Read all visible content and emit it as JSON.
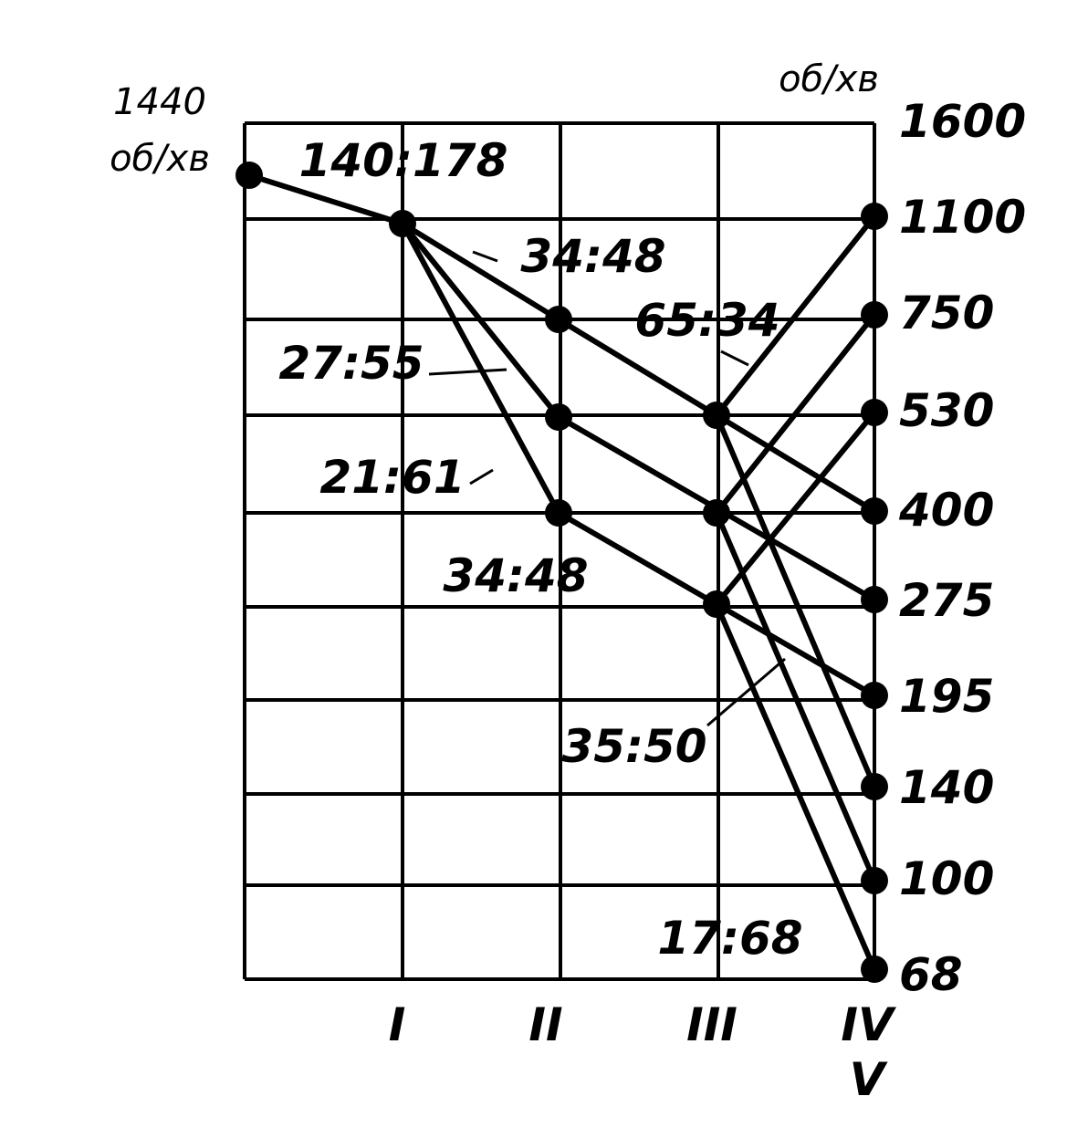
{
  "input_speed": {
    "value": "1440",
    "unit": "об/хв"
  },
  "output_unit": "об/хв",
  "speed_scale": [
    "1600",
    "1100",
    "750",
    "530",
    "400",
    "275",
    "195",
    "140",
    "100",
    "68"
  ],
  "ratios": [
    "140:178",
    "34:48",
    "65:34",
    "27:55",
    "21:61",
    "34:48",
    "35:50",
    "17:68"
  ],
  "shafts": [
    "I",
    "II",
    "III",
    "IV",
    "V"
  ]
}
